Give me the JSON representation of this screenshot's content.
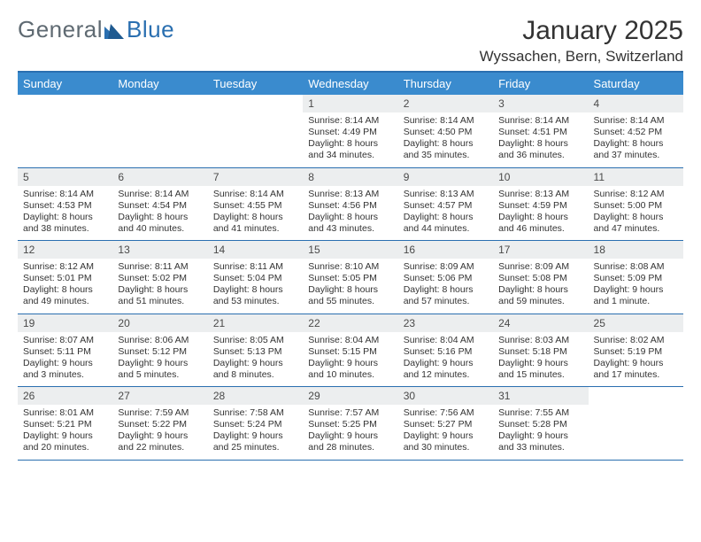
{
  "brand": {
    "part1": "General",
    "part2": "Blue"
  },
  "title": "January 2025",
  "location": "Wyssachen, Bern, Switzerland",
  "header_bg": "#3a8bce",
  "border_color": "#2a6fb0",
  "daynum_bg": "#eceeef",
  "daynames": [
    "Sunday",
    "Monday",
    "Tuesday",
    "Wednesday",
    "Thursday",
    "Friday",
    "Saturday"
  ],
  "weeks": [
    [
      null,
      null,
      null,
      {
        "n": "1",
        "sr": "8:14 AM",
        "ss": "4:49 PM",
        "dh": "8",
        "dm": "34"
      },
      {
        "n": "2",
        "sr": "8:14 AM",
        "ss": "4:50 PM",
        "dh": "8",
        "dm": "35"
      },
      {
        "n": "3",
        "sr": "8:14 AM",
        "ss": "4:51 PM",
        "dh": "8",
        "dm": "36"
      },
      {
        "n": "4",
        "sr": "8:14 AM",
        "ss": "4:52 PM",
        "dh": "8",
        "dm": "37"
      }
    ],
    [
      {
        "n": "5",
        "sr": "8:14 AM",
        "ss": "4:53 PM",
        "dh": "8",
        "dm": "38"
      },
      {
        "n": "6",
        "sr": "8:14 AM",
        "ss": "4:54 PM",
        "dh": "8",
        "dm": "40"
      },
      {
        "n": "7",
        "sr": "8:14 AM",
        "ss": "4:55 PM",
        "dh": "8",
        "dm": "41"
      },
      {
        "n": "8",
        "sr": "8:13 AM",
        "ss": "4:56 PM",
        "dh": "8",
        "dm": "43"
      },
      {
        "n": "9",
        "sr": "8:13 AM",
        "ss": "4:57 PM",
        "dh": "8",
        "dm": "44"
      },
      {
        "n": "10",
        "sr": "8:13 AM",
        "ss": "4:59 PM",
        "dh": "8",
        "dm": "46"
      },
      {
        "n": "11",
        "sr": "8:12 AM",
        "ss": "5:00 PM",
        "dh": "8",
        "dm": "47"
      }
    ],
    [
      {
        "n": "12",
        "sr": "8:12 AM",
        "ss": "5:01 PM",
        "dh": "8",
        "dm": "49"
      },
      {
        "n": "13",
        "sr": "8:11 AM",
        "ss": "5:02 PM",
        "dh": "8",
        "dm": "51"
      },
      {
        "n": "14",
        "sr": "8:11 AM",
        "ss": "5:04 PM",
        "dh": "8",
        "dm": "53"
      },
      {
        "n": "15",
        "sr": "8:10 AM",
        "ss": "5:05 PM",
        "dh": "8",
        "dm": "55"
      },
      {
        "n": "16",
        "sr": "8:09 AM",
        "ss": "5:06 PM",
        "dh": "8",
        "dm": "57"
      },
      {
        "n": "17",
        "sr": "8:09 AM",
        "ss": "5:08 PM",
        "dh": "8",
        "dm": "59"
      },
      {
        "n": "18",
        "sr": "8:08 AM",
        "ss": "5:09 PM",
        "dh": "9",
        "dm": "1"
      }
    ],
    [
      {
        "n": "19",
        "sr": "8:07 AM",
        "ss": "5:11 PM",
        "dh": "9",
        "dm": "3"
      },
      {
        "n": "20",
        "sr": "8:06 AM",
        "ss": "5:12 PM",
        "dh": "9",
        "dm": "5"
      },
      {
        "n": "21",
        "sr": "8:05 AM",
        "ss": "5:13 PM",
        "dh": "9",
        "dm": "8"
      },
      {
        "n": "22",
        "sr": "8:04 AM",
        "ss": "5:15 PM",
        "dh": "9",
        "dm": "10"
      },
      {
        "n": "23",
        "sr": "8:04 AM",
        "ss": "5:16 PM",
        "dh": "9",
        "dm": "12"
      },
      {
        "n": "24",
        "sr": "8:03 AM",
        "ss": "5:18 PM",
        "dh": "9",
        "dm": "15"
      },
      {
        "n": "25",
        "sr": "8:02 AM",
        "ss": "5:19 PM",
        "dh": "9",
        "dm": "17"
      }
    ],
    [
      {
        "n": "26",
        "sr": "8:01 AM",
        "ss": "5:21 PM",
        "dh": "9",
        "dm": "20"
      },
      {
        "n": "27",
        "sr": "7:59 AM",
        "ss": "5:22 PM",
        "dh": "9",
        "dm": "22"
      },
      {
        "n": "28",
        "sr": "7:58 AM",
        "ss": "5:24 PM",
        "dh": "9",
        "dm": "25"
      },
      {
        "n": "29",
        "sr": "7:57 AM",
        "ss": "5:25 PM",
        "dh": "9",
        "dm": "28"
      },
      {
        "n": "30",
        "sr": "7:56 AM",
        "ss": "5:27 PM",
        "dh": "9",
        "dm": "30"
      },
      {
        "n": "31",
        "sr": "7:55 AM",
        "ss": "5:28 PM",
        "dh": "9",
        "dm": "33"
      },
      null
    ]
  ],
  "labels": {
    "sunrise": "Sunrise:",
    "sunset": "Sunset:",
    "daylight": "Daylight:",
    "hours": "hours",
    "and": "and",
    "minutes_singular": "minute.",
    "minutes_plural": "minutes."
  }
}
